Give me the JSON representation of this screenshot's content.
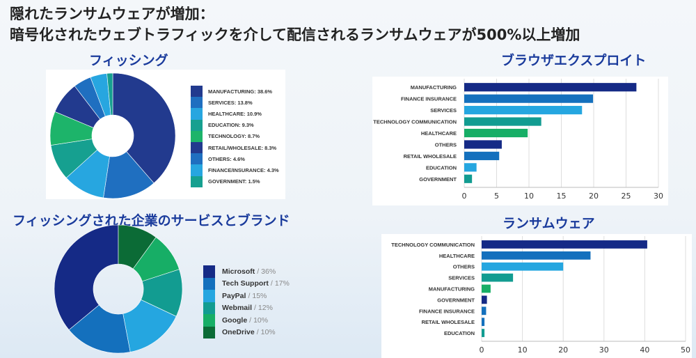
{
  "title": {
    "line1": "隠れたランサムウェアが増加：",
    "line2": "暗号化されたウェブトラフィックを介して配信されるランサムウェアが500%以上増加"
  },
  "chart_data": [
    {
      "type": "pie",
      "title": "フィッシング",
      "donut": true,
      "slices": [
        {
          "label": "MANUFACTURING: 38.6%",
          "value": 38.6,
          "color": "#223a8e"
        },
        {
          "label": "SERVICES: 13.8%",
          "value": 13.8,
          "color": "#1f6fc0"
        },
        {
          "label": "HEALTHCARE: 10.9%",
          "value": 10.9,
          "color": "#27a6e0"
        },
        {
          "label": "EDUCATION: 9.3%",
          "value": 9.3,
          "color": "#16a090"
        },
        {
          "label": "TECHNOLOGY: 8.7%",
          "value": 8.7,
          "color": "#1db46a"
        },
        {
          "label": "RETAIL/WHOLESALE: 8.3%",
          "value": 8.3,
          "color": "#223a8e"
        },
        {
          "label": "OTHERS: 4.6%",
          "value": 4.6,
          "color": "#1f6fc0"
        },
        {
          "label": "FINANCE/INSURANCE: 4.3%",
          "value": 4.3,
          "color": "#27a6e0"
        },
        {
          "label": "GOVERNMENT: 1.5%",
          "value": 1.5,
          "color": "#16a090"
        }
      ],
      "legend": "right"
    },
    {
      "type": "bar",
      "orientation": "horizontal",
      "title": "ブラウザエクスプロイト",
      "categories": [
        "MANUFACTURING",
        "FINANCE INSURANCE",
        "SERVICES",
        "TECHNOLOGY COMMUNICATION",
        "HEALTHCARE",
        "OTHERS",
        "RETAIL WHOLESALE",
        "EDUCATION",
        "GOVERNMENT"
      ],
      "values": [
        26.6,
        19.9,
        18.2,
        11.9,
        9.8,
        5.8,
        5.4,
        1.9,
        1.2
      ],
      "colors": [
        "#152a86",
        "#1470bd",
        "#25a6e0",
        "#129c91",
        "#17ae66",
        "#152a86",
        "#1470bd",
        "#25a6e0",
        "#129c91"
      ],
      "xlim": [
        0,
        30
      ],
      "xticks": [
        "0",
        "5",
        "10",
        "15",
        "20",
        "25",
        "30"
      ],
      "grid": true
    },
    {
      "type": "pie",
      "title": "フィッシングされた企業のサービスとブランド",
      "donut": true,
      "slices": [
        {
          "label": "Microsoft",
          "pct": "36%",
          "value": 36,
          "color": "#152a86"
        },
        {
          "label": "Tech Support",
          "pct": "17%",
          "value": 17,
          "color": "#1470bd"
        },
        {
          "label": "PayPal",
          "pct": "15%",
          "value": 15,
          "color": "#25a6e0"
        },
        {
          "label": "Webmail",
          "pct": "12%",
          "value": 12,
          "color": "#129c91"
        },
        {
          "label": "Google",
          "pct": "10%",
          "value": 10,
          "color": "#17ae66"
        },
        {
          "label": "OneDrive",
          "pct": "10%",
          "value": 10,
          "color": "#0b6b36"
        }
      ],
      "legend": "right"
    },
    {
      "type": "bar",
      "orientation": "horizontal",
      "title": "ランサムウェア",
      "categories": [
        "TECHNOLOGY COMMUNICATION",
        "HEALTHCARE",
        "OTHERS",
        "SERVICES",
        "MANUFACTURING",
        "GOVERNMENT",
        "FINANCE INSURANCE",
        "RETAIL WHOLESALE",
        "EDUCATION"
      ],
      "values": [
        40.6,
        26.7,
        20.0,
        7.7,
        2.2,
        1.3,
        1.1,
        0.7,
        0.7
      ],
      "colors": [
        "#152a86",
        "#1470bd",
        "#25a6e0",
        "#129c91",
        "#17ae66",
        "#152a86",
        "#1470bd",
        "#1470bd",
        "#129c91"
      ],
      "xlim": [
        0,
        50
      ],
      "xticks": [
        "0",
        "10",
        "20",
        "30",
        "40",
        "50"
      ],
      "grid": true
    }
  ]
}
